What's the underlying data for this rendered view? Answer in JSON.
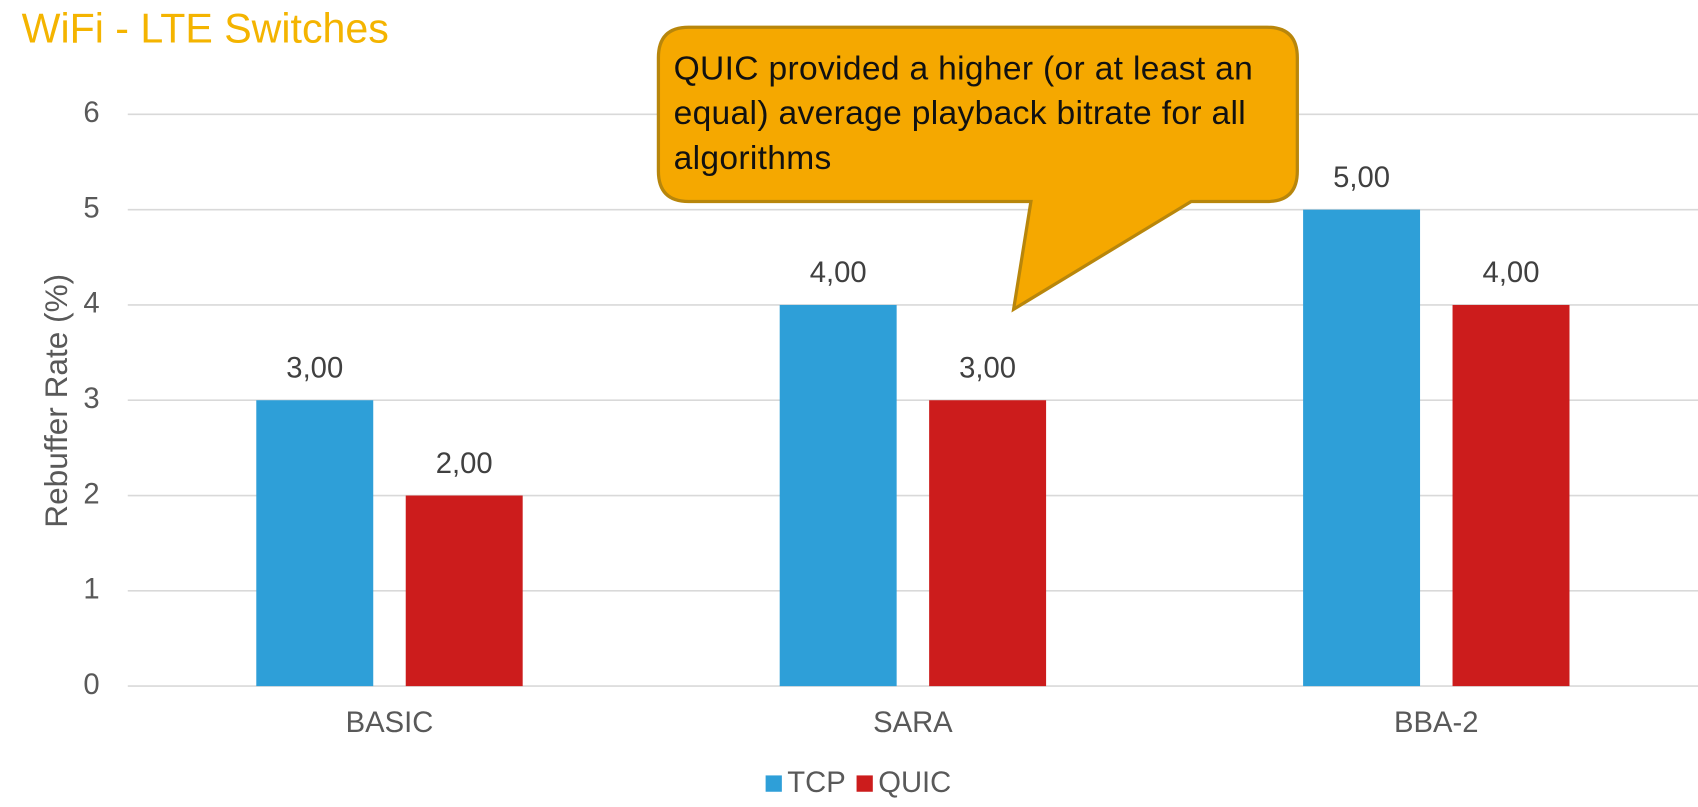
{
  "chart_data": {
    "type": "bar",
    "title": "WiFi - LTE Switches",
    "y_label": "Rebuffer Rate (%)",
    "annotation": "QUIC provided a higher (or at least an equal) average playback bitrate for all algorithms",
    "categories": [
      "BASIC",
      "SARA",
      "BBA-2"
    ],
    "series": [
      {
        "name": "TCP",
        "color": "#2e9fd8",
        "values": [
          3,
          4,
          5
        ],
        "value_labels": [
          "3,00",
          "4,00",
          "5,00"
        ]
      },
      {
        "name": "QUIC",
        "color": "#cc1c1c",
        "values": [
          2,
          3,
          4
        ],
        "value_labels": [
          "2,00",
          "3,00",
          "4,00"
        ]
      }
    ],
    "ylim": [
      0,
      6
    ],
    "yticks": [
      0,
      1,
      2,
      3,
      4,
      5,
      6
    ],
    "grid": true,
    "legend": "bottom"
  }
}
